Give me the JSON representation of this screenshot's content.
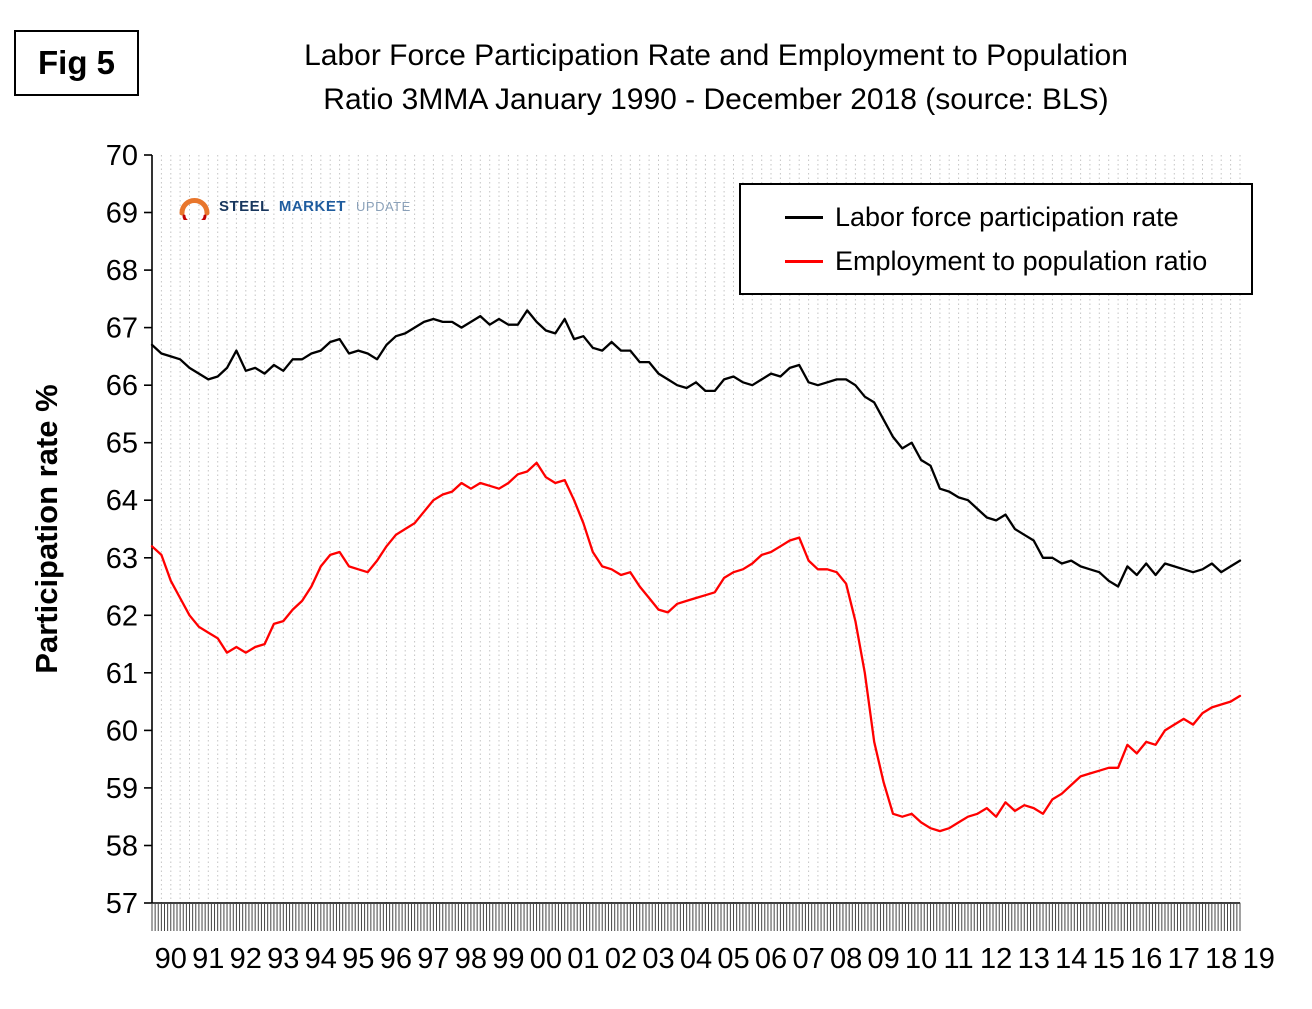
{
  "figure": {
    "label": "Fig 5",
    "title_line1": "Labor Force Participation Rate and Employment to Population",
    "title_line2": "Ratio 3MMA January 1990 - December 2018 (source: BLS)",
    "y_axis_label": "Participation rate %"
  },
  "logo": {
    "brand_part1": "STEEL",
    "brand_part2": "MARKET",
    "brand_part3": "UPDATE"
  },
  "chart_data": {
    "type": "line",
    "title": "Labor Force Participation Rate and Employment to Population Ratio 3MMA January 1990 - December 2018 (source: BLS)",
    "xlabel": "",
    "ylabel": "Participation rate %",
    "ylim": [
      57,
      70
    ],
    "ytick_step": 1,
    "x_start_year": 1990,
    "x_end_year": 2019,
    "x_step_years": 0.25,
    "sampling_note": "quarterly samples of monthly 3MMA data, Jan 1990 - Dec 2018",
    "x_tick_labels": [
      "90",
      "91",
      "92",
      "93",
      "94",
      "95",
      "96",
      "97",
      "98",
      "99",
      "00",
      "01",
      "02",
      "03",
      "04",
      "05",
      "06",
      "07",
      "08",
      "09",
      "10",
      "11",
      "12",
      "13",
      "14",
      "15",
      "16",
      "17",
      "18",
      "19"
    ],
    "grid": "vertical-dotted-quarterly",
    "legend_position": "top-right",
    "axis_color": "#000000",
    "grid_color": "#c4c4c4",
    "series": [
      {
        "name": "Labor force participation rate",
        "color": "#000000",
        "values": [
          66.7,
          66.55,
          66.5,
          66.45,
          66.3,
          66.2,
          66.1,
          66.15,
          66.3,
          66.6,
          66.25,
          66.3,
          66.2,
          66.35,
          66.25,
          66.45,
          66.45,
          66.55,
          66.6,
          66.75,
          66.8,
          66.55,
          66.6,
          66.55,
          66.45,
          66.7,
          66.85,
          66.9,
          67.0,
          67.1,
          67.15,
          67.1,
          67.1,
          67.0,
          67.1,
          67.2,
          67.05,
          67.15,
          67.05,
          67.05,
          67.3,
          67.1,
          66.95,
          66.9,
          67.15,
          66.8,
          66.85,
          66.65,
          66.6,
          66.75,
          66.6,
          66.6,
          66.4,
          66.4,
          66.2,
          66.1,
          66.0,
          65.95,
          66.05,
          65.9,
          65.9,
          66.1,
          66.15,
          66.05,
          66.0,
          66.1,
          66.2,
          66.15,
          66.3,
          66.35,
          66.05,
          66.0,
          66.05,
          66.1,
          66.1,
          66.0,
          65.8,
          65.7,
          65.4,
          65.1,
          64.9,
          65.0,
          64.7,
          64.6,
          64.2,
          64.15,
          64.05,
          64.0,
          63.85,
          63.7,
          63.65,
          63.75,
          63.5,
          63.4,
          63.3,
          63.0,
          63.0,
          62.9,
          62.95,
          62.85,
          62.8,
          62.75,
          62.6,
          62.5,
          62.85,
          62.7,
          62.9,
          62.7,
          62.9,
          62.85,
          62.8,
          62.75,
          62.8,
          62.9,
          62.75,
          62.85,
          62.95
        ]
      },
      {
        "name": "Employment to population ratio",
        "color": "#ff0000",
        "values": [
          63.2,
          63.05,
          62.6,
          62.3,
          62.0,
          61.8,
          61.7,
          61.6,
          61.35,
          61.45,
          61.35,
          61.45,
          61.5,
          61.85,
          61.9,
          62.1,
          62.25,
          62.5,
          62.85,
          63.05,
          63.1,
          62.85,
          62.8,
          62.75,
          62.95,
          63.2,
          63.4,
          63.5,
          63.6,
          63.8,
          64.0,
          64.1,
          64.15,
          64.3,
          64.2,
          64.3,
          64.25,
          64.2,
          64.3,
          64.45,
          64.5,
          64.65,
          64.4,
          64.3,
          64.35,
          64.0,
          63.6,
          63.1,
          62.85,
          62.8,
          62.7,
          62.75,
          62.5,
          62.3,
          62.1,
          62.05,
          62.2,
          62.25,
          62.3,
          62.35,
          62.4,
          62.65,
          62.75,
          62.8,
          62.9,
          63.05,
          63.1,
          63.2,
          63.3,
          63.35,
          62.95,
          62.8,
          62.8,
          62.75,
          62.55,
          61.9,
          61.0,
          59.8,
          59.1,
          58.55,
          58.5,
          58.55,
          58.4,
          58.3,
          58.25,
          58.3,
          58.4,
          58.5,
          58.55,
          58.65,
          58.5,
          58.75,
          58.6,
          58.7,
          58.65,
          58.55,
          58.8,
          58.9,
          59.05,
          59.2,
          59.25,
          59.3,
          59.35,
          59.35,
          59.75,
          59.6,
          59.8,
          59.75,
          60.0,
          60.1,
          60.2,
          60.1,
          60.3,
          60.4,
          60.45,
          60.5,
          60.6
        ]
      }
    ]
  }
}
